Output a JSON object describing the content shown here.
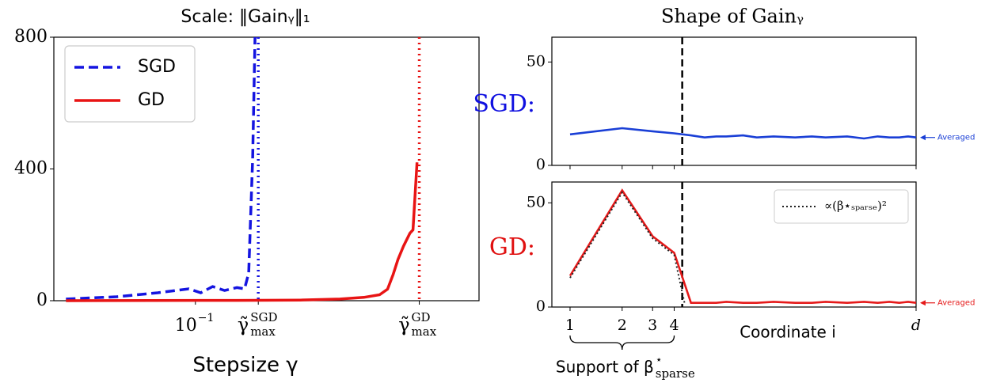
{
  "chart_data": [
    {
      "type": "line",
      "title": "Scale: ‖Gainᵧ‖₁",
      "xlabel": "Stepsize γ",
      "xscale": "log",
      "xlim": [
        0.021,
        2.28
      ],
      "ylim": [
        0,
        800
      ],
      "xticks": [
        {
          "value": 0.1,
          "label": "10",
          "sup": "−1"
        },
        {
          "value": 0.2,
          "label": "γ̃",
          "sub": "max",
          "sup": "SGD",
          "line_color": "#1414e0"
        },
        {
          "value": 1.18,
          "label": "γ̃",
          "sub": "max",
          "sup": "GD",
          "line_color": "#e81414"
        }
      ],
      "yticks": [
        0,
        400,
        800
      ],
      "legend": "upper left",
      "series": [
        {
          "name": "SGD",
          "color": "#1414e0",
          "style": "dashed",
          "x": [
            0.024,
            0.042,
            0.066,
            0.093,
            0.106,
            0.121,
            0.138,
            0.158,
            0.172,
            0.18,
            0.188,
            0.193
          ],
          "values": [
            5,
            12,
            24,
            36,
            24,
            43,
            31,
            40,
            36,
            84,
            432,
            800
          ]
        },
        {
          "name": "GD",
          "color": "#e81414",
          "style": "solid",
          "x": [
            0.024,
            0.158,
            0.318,
            0.492,
            0.64,
            0.762,
            0.832,
            0.885,
            0.933,
            0.991,
            1.064,
            1.101,
            1.151
          ],
          "values": [
            0,
            1,
            2,
            5,
            10,
            18,
            35,
            80,
            125,
            165,
            205,
            215,
            420
          ]
        }
      ]
    },
    {
      "type": "line",
      "title": "Shape of Gainᵧ",
      "xlabel": "Coordinate i",
      "xscale": "log",
      "xlim": [
        0.785,
        100
      ],
      "xticks": [
        1,
        2,
        3,
        4,
        {
          "value": 100,
          "label": "d"
        }
      ],
      "support_label": "Support of β",
      "support_sup": "⋆",
      "support_sub": "sparse",
      "support_boundary": 4.45,
      "panels": [
        {
          "label": "SGD:",
          "color": "#1010e0",
          "ylim": [
            0,
            62
          ],
          "yticks": [
            0,
            50
          ],
          "series": [
            {
              "annotation": "Averaged",
              "color": "#1a3fd6",
              "style": "solid",
              "x": [
                1,
                2,
                3,
                4,
                5,
                6,
                7,
                8,
                10,
                12,
                15,
                20,
                25,
                30,
                40,
                50,
                60,
                70,
                80,
                90,
                100
              ],
              "values": [
                15,
                18,
                16.5,
                15.5,
                14.5,
                13.5,
                14,
                14,
                14.5,
                13.5,
                14,
                13.5,
                14,
                13.5,
                14,
                13,
                14,
                13.5,
                13.5,
                14,
                13.5
              ]
            }
          ]
        },
        {
          "label": "GD:",
          "color": "#e01010",
          "ylim": [
            0,
            60
          ],
          "yticks": [
            0,
            50
          ],
          "legend": "upper right",
          "series": [
            {
              "annotation": "Averaged",
              "color": "#e51a1a",
              "style": "solid",
              "x": [
                1,
                2,
                3,
                4,
                5,
                6,
                7,
                8,
                10,
                12,
                15,
                20,
                25,
                30,
                40,
                50,
                60,
                70,
                80,
                90,
                100
              ],
              "values": [
                15,
                56,
                34,
                26,
                2,
                2,
                2,
                2.5,
                2,
                2,
                2.5,
                2,
                2,
                2.5,
                2,
                2.5,
                2,
                2.5,
                2,
                2.5,
                2
              ]
            },
            {
              "name": "∝(β⋆ₛₚₐᵣₛₑ)²",
              "color": "#222222",
              "style": "dotted",
              "x": [
                1,
                2,
                3,
                4,
                4.6
              ],
              "values": [
                14,
                55,
                33,
                25,
                1.5
              ]
            }
          ]
        }
      ]
    }
  ]
}
